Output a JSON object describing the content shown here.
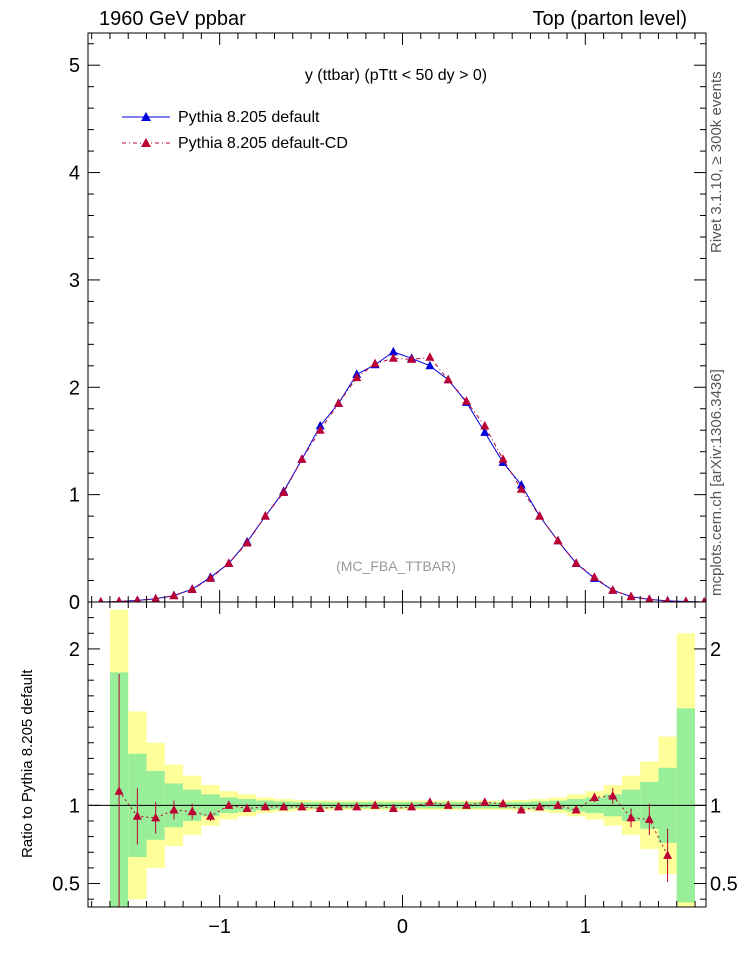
{
  "header": {
    "left": "1960 GeV ppbar",
    "right": "Top (parton level)"
  },
  "side_labels": {
    "rivet": "Rivet 3.1.10, ≥ 300k events",
    "mcplots": "mcplots.cern.ch [arXiv:1306.3436]"
  },
  "chart_data": [
    {
      "type": "line",
      "title": "y (ttbar) (pTtt < 50 dy > 0)",
      "watermark": "(MC_FBA_TTBAR)",
      "xlabel": "",
      "ylabel": "",
      "xlim": [
        -1.72,
        1.66
      ],
      "ylim": [
        0,
        5.3
      ],
      "yticks": [
        0,
        1,
        2,
        3,
        4,
        5
      ],
      "ytick_labels": [
        "0",
        "1",
        "2",
        "3",
        "4",
        "5"
      ],
      "legend_position": "top-left",
      "series": [
        {
          "name": "Pythia 8.205 default",
          "color": "#0000dd",
          "line": "solid",
          "marker": "triangle",
          "x": [
            -1.65,
            -1.55,
            -1.45,
            -1.35,
            -1.25,
            -1.15,
            -1.05,
            -0.95,
            -0.85,
            -0.75,
            -0.65,
            -0.55,
            -0.45,
            -0.35,
            -0.25,
            -0.15,
            -0.05,
            0.05,
            0.15,
            0.25,
            0.35,
            0.45,
            0.55,
            0.65,
            0.75,
            0.85,
            0.95,
            1.05,
            1.15,
            1.25,
            1.35,
            1.45,
            1.55,
            1.65
          ],
          "y": [
            0.0,
            0.005,
            0.015,
            0.03,
            0.06,
            0.12,
            0.23,
            0.36,
            0.56,
            0.8,
            1.03,
            1.33,
            1.64,
            1.85,
            2.12,
            2.21,
            2.33,
            2.27,
            2.2,
            2.07,
            1.86,
            1.58,
            1.3,
            1.09,
            0.8,
            0.57,
            0.36,
            0.22,
            0.11,
            0.05,
            0.025,
            0.01,
            0.005,
            0.0
          ]
        },
        {
          "name": "Pythia 8.205 default-CD",
          "color": "#bb0033",
          "line": "dash-dot",
          "marker": "triangle",
          "x": [
            -1.65,
            -1.55,
            -1.45,
            -1.35,
            -1.25,
            -1.15,
            -1.05,
            -0.95,
            -0.85,
            -0.75,
            -0.65,
            -0.55,
            -0.45,
            -0.35,
            -0.25,
            -0.15,
            -0.05,
            0.05,
            0.15,
            0.25,
            0.35,
            0.45,
            0.55,
            0.65,
            0.75,
            0.85,
            0.95,
            1.05,
            1.15,
            1.25,
            1.35,
            1.45,
            1.55,
            1.65
          ],
          "y": [
            0.0,
            0.006,
            0.014,
            0.028,
            0.058,
            0.117,
            0.22,
            0.36,
            0.55,
            0.8,
            1.02,
            1.33,
            1.6,
            1.85,
            2.09,
            2.22,
            2.27,
            2.26,
            2.28,
            2.07,
            1.87,
            1.64,
            1.33,
            1.05,
            0.8,
            0.57,
            0.36,
            0.23,
            0.11,
            0.05,
            0.023,
            0.007,
            0.004,
            0.0
          ]
        }
      ]
    },
    {
      "type": "line",
      "ylabel": "Ratio to Pythia 8.205 default",
      "xlim": [
        -1.72,
        1.66
      ],
      "ylim": [
        0.35,
        2.3
      ],
      "xticks": [
        -1,
        0,
        1
      ],
      "xtick_labels": [
        "−1",
        "0",
        "1"
      ],
      "yticks": [
        0.5,
        1,
        2
      ],
      "ytick_labels": [
        "0.5",
        "1",
        "2"
      ],
      "reference_line": 1,
      "band_bins": [
        -1.6,
        -1.5,
        -1.4,
        -1.3,
        -1.2,
        -1.1,
        -1.0,
        -0.9,
        -0.8,
        -0.7,
        -0.6,
        -0.5,
        -0.4,
        -0.3,
        -0.2,
        -0.1,
        0.0,
        0.1,
        0.2,
        0.3,
        0.4,
        0.5,
        0.6,
        0.7,
        0.8,
        0.9,
        1.0,
        1.1,
        1.2,
        1.3,
        1.4,
        1.5,
        1.6
      ],
      "band_green": [
        0.85,
        0.33,
        0.22,
        0.14,
        0.1,
        0.07,
        0.05,
        0.04,
        0.03,
        0.025,
        0.02,
        0.02,
        0.02,
        0.02,
        0.02,
        0.02,
        0.02,
        0.02,
        0.02,
        0.02,
        0.02,
        0.02,
        0.02,
        0.025,
        0.03,
        0.04,
        0.05,
        0.07,
        0.1,
        0.15,
        0.24,
        0.62
      ],
      "band_yellow": [
        1.25,
        0.6,
        0.4,
        0.26,
        0.19,
        0.13,
        0.09,
        0.07,
        0.05,
        0.04,
        0.035,
        0.03,
        0.03,
        0.03,
        0.03,
        0.03,
        0.03,
        0.03,
        0.03,
        0.03,
        0.03,
        0.03,
        0.035,
        0.04,
        0.05,
        0.07,
        0.09,
        0.13,
        0.19,
        0.28,
        0.44,
        1.1
      ],
      "series": [
        {
          "name": "Pythia 8.205 default-CD / Pythia 8.205 default",
          "color": "#bb0033",
          "x": [
            -1.55,
            -1.45,
            -1.35,
            -1.25,
            -1.15,
            -1.05,
            -0.95,
            -0.85,
            -0.75,
            -0.65,
            -0.55,
            -0.45,
            -0.35,
            -0.25,
            -0.15,
            -0.05,
            0.05,
            0.15,
            0.25,
            0.35,
            0.45,
            0.55,
            0.65,
            0.75,
            0.85,
            0.95,
            1.05,
            1.15,
            1.25,
            1.35,
            1.45
          ],
          "y": [
            1.09,
            0.93,
            0.92,
            0.97,
            0.96,
            0.93,
            1.0,
            0.98,
            0.99,
            0.99,
            0.99,
            0.98,
            0.99,
            0.99,
            1.0,
            0.98,
            0.99,
            1.02,
            1.0,
            1.0,
            1.02,
            1.01,
            0.97,
            0.99,
            1.0,
            0.97,
            1.05,
            1.06,
            0.92,
            0.91,
            0.68
          ],
          "err": [
            0.75,
            0.18,
            0.1,
            0.06,
            0.05,
            0.03,
            0.02,
            0.01,
            0.01,
            0.01,
            0.01,
            0.01,
            0.01,
            0.01,
            0.01,
            0.01,
            0.01,
            0.01,
            0.01,
            0.01,
            0.01,
            0.01,
            0.01,
            0.01,
            0.01,
            0.02,
            0.03,
            0.05,
            0.06,
            0.1,
            0.17
          ]
        }
      ]
    }
  ]
}
